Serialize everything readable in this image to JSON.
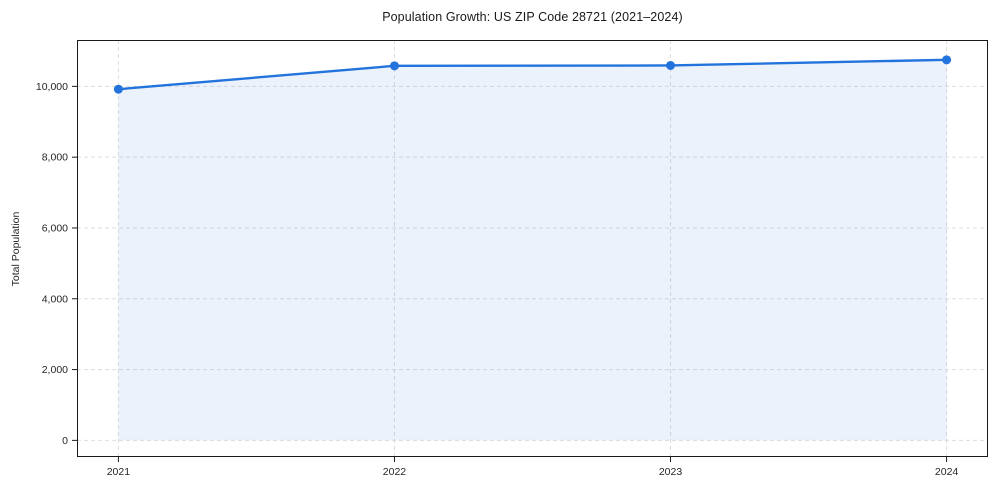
{
  "chart_data": {
    "type": "line",
    "title": "Population Growth: US ZIP Code 28721 (2021–2024)",
    "xlabel": "",
    "ylabel": "Total Population",
    "x": [
      2021,
      2022,
      2023,
      2024
    ],
    "series": [
      {
        "name": "Total Population",
        "values": [
          9920,
          10580,
          10590,
          10750
        ]
      }
    ],
    "x_tick_labels": [
      "2021",
      "2022",
      "2023",
      "2024"
    ],
    "y_ticks": [
      0,
      2000,
      4000,
      6000,
      8000,
      10000
    ],
    "y_tick_labels": [
      "0",
      "2,000",
      "4,000",
      "6,000",
      "8,000",
      "10,000"
    ],
    "xlim": [
      2020.85,
      2024.15
    ],
    "ylim": [
      -470,
      11310
    ],
    "grid": true,
    "grid_style": "dashed",
    "legend": false,
    "area_fill": true,
    "area_baseline": 0,
    "marker": "circle",
    "colors": {
      "line": "#2273dc",
      "fill": "#2273dc",
      "fill_opacity": 0.09,
      "grid": "#dedede",
      "spine": "#1a1a1a",
      "text": "#262626",
      "background": "#ffffff"
    }
  }
}
